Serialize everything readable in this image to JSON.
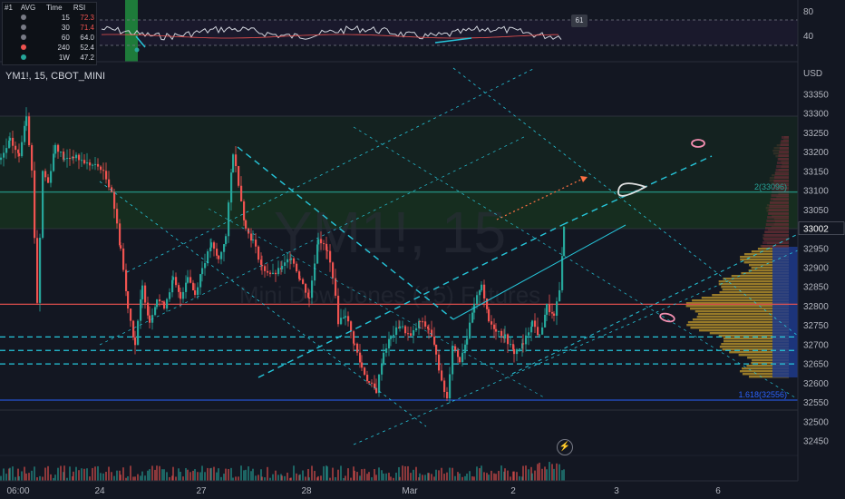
{
  "legend": {
    "symbol": "YM1!, 15, CBOT_MINI"
  },
  "watermark": {
    "ticker": "YM1!, 15",
    "name": "Mini Dow Jones (15) Futures"
  },
  "rsi_table": {
    "headers": [
      "#1",
      "AVG",
      "Time",
      "RSI"
    ],
    "rows": [
      {
        "time": "15",
        "rsi": "72.3",
        "color": "#ef5350",
        "dot": "#787b86"
      },
      {
        "time": "30",
        "rsi": "71.4",
        "color": "#ef5350",
        "dot": "#787b86"
      },
      {
        "time": "60",
        "rsi": "64.0",
        "color": "#d1d4dc",
        "dot": "#787b86"
      },
      {
        "time": "240",
        "rsi": "52.4",
        "color": "#d1d4dc",
        "dot": "#ef5350"
      },
      {
        "time": "1W",
        "rsi": "47.2",
        "color": "#d1d4dc",
        "dot": "#26a69a"
      }
    ]
  },
  "rsi_badge": "61",
  "price_axis": {
    "unit": "USD",
    "labels": [
      "33350",
      "33300",
      "33250",
      "33200",
      "33150",
      "33100",
      "33050",
      "33000",
      "32950",
      "32900",
      "32850",
      "32800",
      "32750",
      "32700",
      "32650",
      "32600",
      "32550",
      "32500",
      "32450"
    ]
  },
  "rsi_axis": {
    "labels": [
      "80",
      "40"
    ]
  },
  "time_axis": {
    "labels": [
      "06:00",
      "24",
      "27",
      "28",
      "Mar",
      "2",
      "3",
      "6"
    ]
  },
  "current_price": "33002",
  "fib_levels": [
    {
      "label": "2(33096)",
      "value": 33096,
      "color": "#26a69a"
    },
    {
      "label": "1.618(32556)",
      "value": 32556,
      "color": "#2962ff"
    }
  ],
  "horizontal_levels": [
    32805,
    32720,
    32685,
    32650
  ],
  "chart_data": {
    "type": "candlestick",
    "symbol": "YM1!",
    "interval": "15",
    "exchange": "CBOT_MINI",
    "ylim": [
      32420,
      33380
    ],
    "current": 33002,
    "key_levels": {
      "resistance_red": 32805,
      "fib_2": 33096,
      "fib_1618": 32556,
      "dashed": [
        32720,
        32685,
        32650
      ]
    },
    "path": [
      [
        0,
        33180
      ],
      [
        10,
        33230
      ],
      [
        20,
        33190
      ],
      [
        28,
        33300
      ],
      [
        34,
        33150
      ],
      [
        40,
        32810
      ],
      [
        46,
        33150
      ],
      [
        52,
        33120
      ],
      [
        60,
        33220
      ],
      [
        70,
        33180
      ],
      [
        80,
        33190
      ],
      [
        95,
        33170
      ],
      [
        110,
        33160
      ],
      [
        122,
        33100
      ],
      [
        132,
        32950
      ],
      [
        140,
        32800
      ],
      [
        148,
        32700
      ],
      [
        156,
        32850
      ],
      [
        164,
        32760
      ],
      [
        172,
        32820
      ],
      [
        180,
        32800
      ],
      [
        190,
        32870
      ],
      [
        198,
        32820
      ],
      [
        206,
        32880
      ],
      [
        214,
        32830
      ],
      [
        222,
        32900
      ],
      [
        232,
        32960
      ],
      [
        240,
        32920
      ],
      [
        248,
        32980
      ],
      [
        256,
        33200
      ],
      [
        262,
        33120
      ],
      [
        270,
        33000
      ],
      [
        278,
        32970
      ],
      [
        288,
        32900
      ],
      [
        300,
        32880
      ],
      [
        310,
        32900
      ],
      [
        320,
        32930
      ],
      [
        330,
        32870
      ],
      [
        340,
        32820
      ],
      [
        350,
        32980
      ],
      [
        360,
        32940
      ],
      [
        366,
        32880
      ],
      [
        372,
        32760
      ],
      [
        380,
        32780
      ],
      [
        390,
        32700
      ],
      [
        398,
        32640
      ],
      [
        406,
        32600
      ],
      [
        414,
        32580
      ],
      [
        422,
        32680
      ],
      [
        430,
        32720
      ],
      [
        440,
        32750
      ],
      [
        452,
        32720
      ],
      [
        462,
        32760
      ],
      [
        472,
        32740
      ],
      [
        480,
        32680
      ],
      [
        486,
        32600
      ],
      [
        492,
        32560
      ],
      [
        498,
        32700
      ],
      [
        506,
        32660
      ],
      [
        514,
        32720
      ],
      [
        522,
        32800
      ],
      [
        530,
        32860
      ],
      [
        538,
        32760
      ],
      [
        546,
        32740
      ],
      [
        556,
        32720
      ],
      [
        566,
        32680
      ],
      [
        576,
        32700
      ],
      [
        586,
        32760
      ],
      [
        594,
        32720
      ],
      [
        602,
        32800
      ],
      [
        610,
        32770
      ],
      [
        616,
        32840
      ],
      [
        621,
        33002
      ]
    ]
  }
}
